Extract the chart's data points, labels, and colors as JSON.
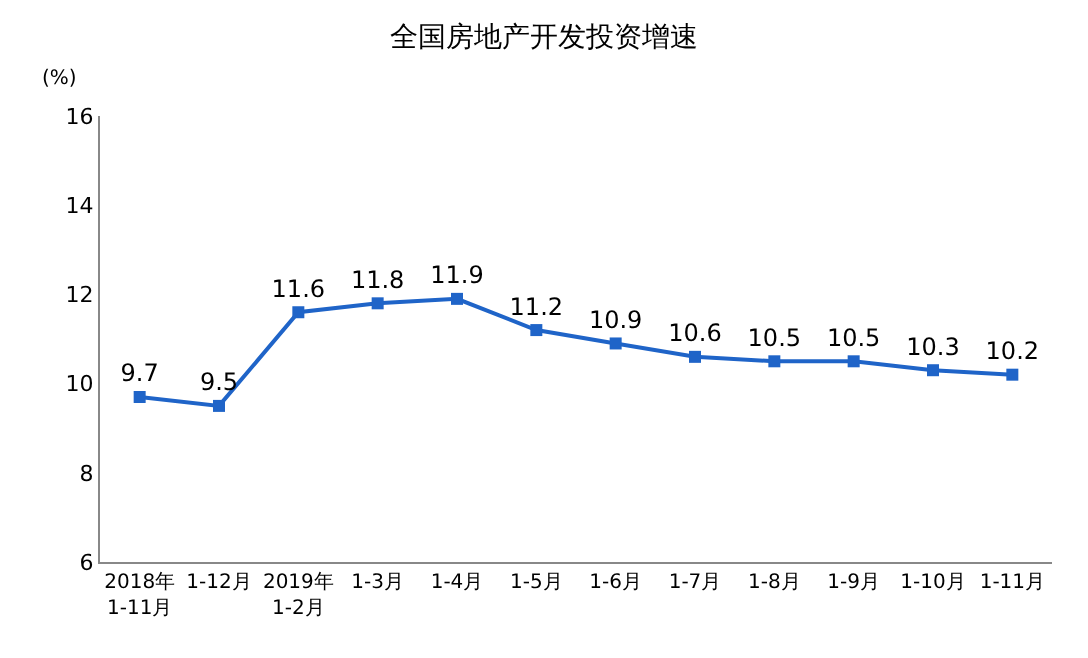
{
  "chart_data": {
    "type": "line",
    "title": "全国房地产开发投资增速",
    "ylabel": "(%)",
    "categories": [
      "2018年\n1-11月",
      "1-12月",
      "2019年\n1-2月",
      "1-3月",
      "1-4月",
      "1-5月",
      "1-6月",
      "1-7月",
      "1-8月",
      "1-9月",
      "1-10月",
      "1-11月"
    ],
    "series": [
      {
        "color": "#1f64c8",
        "values": [
          9.7,
          9.5,
          11.6,
          11.8,
          11.9,
          11.2,
          10.9,
          10.6,
          10.5,
          10.5,
          10.3,
          10.2
        ]
      }
    ],
    "ylim": [
      6,
      16
    ],
    "yticks": [
      6,
      8,
      10,
      12,
      14,
      16
    ],
    "marker": "square",
    "line_style": "solid",
    "data_labels": true
  }
}
